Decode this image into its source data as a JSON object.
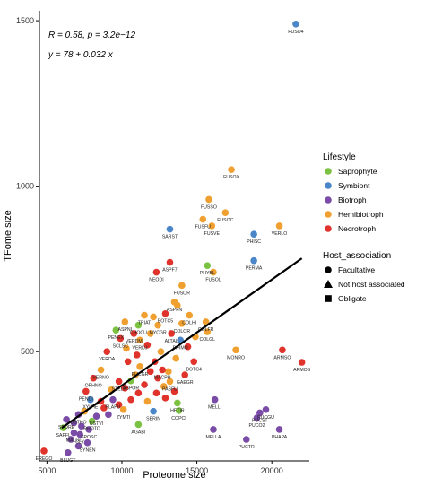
{
  "chart_data": {
    "type": "scatter",
    "title": "",
    "xlabel": "Proteome size",
    "ylabel": "TFome size",
    "xlim": [
      4500,
      22500
    ],
    "ylim": [
      170,
      1530
    ],
    "x_ticks": [
      5000,
      10000,
      15000,
      20000
    ],
    "y_ticks": [
      500,
      1000,
      1500
    ],
    "grid": false,
    "annotations": {
      "stats": "R = 0.58, p = 3.2e−12",
      "equation": "y = 78 + 0.032 x"
    },
    "regression": {
      "intercept": 78,
      "slope": 0.032,
      "x_range": [
        6000,
        22000
      ]
    },
    "legend": {
      "placement": "right",
      "lifestyle_title": "Lifestyle",
      "lifestyle": [
        {
          "key": "saprophyte",
          "name": "Saprophyte",
          "color": "#7CC242"
        },
        {
          "key": "symbiont",
          "name": "Symbiont",
          "color": "#4A86C8"
        },
        {
          "key": "biotroph",
          "name": "Biotroph",
          "color": "#7A4CA8"
        },
        {
          "key": "hemibiotroph",
          "name": "Hemibiotroph",
          "color": "#F0A030"
        },
        {
          "key": "necrotroph",
          "name": "Necrotroph",
          "color": "#E0332C"
        }
      ],
      "host_title": "Host_association",
      "host": [
        {
          "key": "facultative",
          "name": "Facultative",
          "shape": "circle"
        },
        {
          "key": "not_host",
          "name": "Not host associated",
          "shape": "triangle"
        },
        {
          "key": "obligate",
          "name": "Obligate",
          "shape": "square"
        }
      ]
    },
    "points": [
      {
        "label": "FUSO4",
        "x": 21600,
        "y": 1490,
        "lifestyle": "symbiont",
        "host": "facultative"
      },
      {
        "label": "FUSOX",
        "x": 17300,
        "y": 1050,
        "lifestyle": "hemibiotroph",
        "host": "facultative"
      },
      {
        "label": "FUSSO",
        "x": 15800,
        "y": 960,
        "lifestyle": "hemibiotroph",
        "host": "facultative"
      },
      {
        "label": "FUSOC",
        "x": 16900,
        "y": 920,
        "lifestyle": "hemibiotroph",
        "host": "facultative"
      },
      {
        "label": "FUSFU",
        "x": 15400,
        "y": 900,
        "lifestyle": "hemibiotroph",
        "host": "facultative"
      },
      {
        "label": "FUSVE",
        "x": 16000,
        "y": 880,
        "lifestyle": "hemibiotroph",
        "host": "facultative"
      },
      {
        "label": "SARST",
        "x": 13200,
        "y": 870,
        "lifestyle": "symbiont",
        "host": "facultative"
      },
      {
        "label": "VERLO",
        "x": 20500,
        "y": 880,
        "lifestyle": "hemibiotroph",
        "host": "facultative"
      },
      {
        "label": "PHISC",
        "x": 18800,
        "y": 855,
        "lifestyle": "symbiont",
        "host": "facultative"
      },
      {
        "label": "ASPF7",
        "x": 13200,
        "y": 770,
        "lifestyle": "necrotroph",
        "host": "facultative"
      },
      {
        "label": "PHYBL",
        "x": 15700,
        "y": 760,
        "lifestyle": "saprophyte",
        "host": "not_host"
      },
      {
        "label": "NEODI",
        "x": 12300,
        "y": 740,
        "lifestyle": "necrotroph",
        "host": "facultative"
      },
      {
        "label": "FUSOL",
        "x": 16100,
        "y": 740,
        "lifestyle": "hemibiotroph",
        "host": "facultative"
      },
      {
        "label": "PERMA",
        "x": 18800,
        "y": 775,
        "lifestyle": "symbiont",
        "host": "facultative"
      },
      {
        "label": "FUSOR",
        "x": 14000,
        "y": 700,
        "lifestyle": "hemibiotroph",
        "host": "facultative"
      },
      {
        "label": "ASPFN",
        "x": 13500,
        "y": 650,
        "lifestyle": "hemibiotroph",
        "host": "facultative"
      },
      {
        "label": "TRIAT",
        "x": 11500,
        "y": 610,
        "lifestyle": "hemibiotroph",
        "host": "facultative"
      },
      {
        "label": "BOTC5",
        "x": 12900,
        "y": 615,
        "lifestyle": "necrotroph",
        "host": "facultative"
      },
      {
        "label": "COLHI",
        "x": 14500,
        "y": 610,
        "lifestyle": "hemibiotroph",
        "host": "facultative"
      },
      {
        "label": "ASPNI",
        "x": 10200,
        "y": 590,
        "lifestyle": "hemibiotroph",
        "host": "facultative"
      },
      {
        "label": "CHOCU",
        "x": 11100,
        "y": 580,
        "lifestyle": "saprophyte",
        "host": "not_host"
      },
      {
        "label": "MYCGR",
        "x": 12400,
        "y": 580,
        "lifestyle": "hemibiotroph",
        "host": "facultative"
      },
      {
        "label": "COLOR",
        "x": 14000,
        "y": 585,
        "lifestyle": "hemibiotroph",
        "host": "facultative"
      },
      {
        "label": "COLFR",
        "x": 15600,
        "y": 590,
        "lifestyle": "hemibiotroph",
        "host": "facultative"
      },
      {
        "label": "PENEX",
        "x": 9600,
        "y": 565,
        "lifestyle": "saprophyte",
        "host": "not_host"
      },
      {
        "label": "VERDM",
        "x": 10800,
        "y": 555,
        "lifestyle": "necrotroph",
        "host": "facultative"
      },
      {
        "label": "ALTAL",
        "x": 13300,
        "y": 555,
        "lifestyle": "necrotroph",
        "host": "facultative"
      },
      {
        "label": "SCLSC",
        "x": 9900,
        "y": 540,
        "lifestyle": "necrotroph",
        "host": "facultative"
      },
      {
        "label": "VERDJ",
        "x": 11200,
        "y": 535,
        "lifestyle": "hemibiotroph",
        "host": "facultative"
      },
      {
        "label": "PIRMO",
        "x": 13900,
        "y": 535,
        "lifestyle": "symbiont",
        "host": "facultative"
      },
      {
        "label": "COLGL",
        "x": 15700,
        "y": 560,
        "lifestyle": "hemibiotroph",
        "host": "facultative"
      },
      {
        "label": "VERDA",
        "x": 9000,
        "y": 500,
        "lifestyle": "necrotroph",
        "host": "facultative"
      },
      {
        "label": "MONRO",
        "x": 17600,
        "y": 505,
        "lifestyle": "hemibiotroph",
        "host": "facultative"
      },
      {
        "label": "ARMSO",
        "x": 20700,
        "y": 505,
        "lifestyle": "necrotroph",
        "host": "facultative"
      },
      {
        "label": "ARMOS",
        "x": 22000,
        "y": 468,
        "lifestyle": "necrotroph",
        "host": "facultative"
      },
      {
        "label": "BOTC4",
        "x": 14800,
        "y": 470,
        "lifestyle": "necrotroph",
        "host": "facultative"
      },
      {
        "label": "VERNO",
        "x": 8600,
        "y": 445,
        "lifestyle": "hemibiotroph",
        "host": "facultative"
      },
      {
        "label": "PUCGR",
        "x": 11200,
        "y": 455,
        "lifestyle": "hemibiotroph",
        "host": "facultative"
      },
      {
        "label": "MACPH",
        "x": 12700,
        "y": 445,
        "lifestyle": "necrotroph",
        "host": "facultative"
      },
      {
        "label": "GAEGR",
        "x": 14200,
        "y": 430,
        "lifestyle": "necrotroph",
        "host": "facultative"
      },
      {
        "label": "OPHNO",
        "x": 8100,
        "y": 420,
        "lifestyle": "necrotroph",
        "host": "facultative"
      },
      {
        "label": "STELY",
        "x": 9800,
        "y": 410,
        "lifestyle": "necrotroph",
        "host": "facultative"
      },
      {
        "label": "ASPOR",
        "x": 10600,
        "y": 412,
        "lifestyle": "saprophyte",
        "host": "not_host"
      },
      {
        "label": "PASFU",
        "x": 13200,
        "y": 410,
        "lifestyle": "hemibiotroph",
        "host": "facultative"
      },
      {
        "label": "PENDI",
        "x": 7600,
        "y": 380,
        "lifestyle": "necrotroph",
        "host": "facultative"
      },
      {
        "label": "MELLI",
        "x": 16200,
        "y": 355,
        "lifestyle": "biotroph",
        "host": "obligate"
      },
      {
        "label": "XYLHE",
        "x": 7900,
        "y": 355,
        "lifestyle": "symbiont",
        "host": "facultative"
      },
      {
        "label": "PLAPU",
        "x": 9400,
        "y": 355,
        "lifestyle": "biotroph",
        "host": "facultative"
      },
      {
        "label": "HETIR",
        "x": 13700,
        "y": 345,
        "lifestyle": "saprophyte",
        "host": "not_host"
      },
      {
        "label": "ZYMTI",
        "x": 10100,
        "y": 325,
        "lifestyle": "hemibiotroph",
        "host": "facultative"
      },
      {
        "label": "SERIN",
        "x": 12100,
        "y": 320,
        "lifestyle": "symbiont",
        "host": "facultative"
      },
      {
        "label": "COPCI",
        "x": 13800,
        "y": 322,
        "lifestyle": "saprophyte",
        "host": "not_host"
      },
      {
        "label": "USTHO",
        "x": 7100,
        "y": 310,
        "lifestyle": "biotroph",
        "host": "facultative"
      },
      {
        "label": "USTVI",
        "x": 8300,
        "y": 305,
        "lifestyle": "biotroph",
        "host": "facultative"
      },
      {
        "label": "PUCST",
        "x": 19200,
        "y": 315,
        "lifestyle": "biotroph",
        "host": "obligate"
      },
      {
        "label": "PUCGU",
        "x": 19600,
        "y": 325,
        "lifestyle": "biotroph",
        "host": "obligate"
      },
      {
        "label": "PUCO2",
        "x": 19000,
        "y": 300,
        "lifestyle": "biotroph",
        "host": "obligate"
      },
      {
        "label": "SPORE",
        "x": 6300,
        "y": 295,
        "lifestyle": "biotroph",
        "host": "facultative"
      },
      {
        "label": "RHOTO",
        "x": 8000,
        "y": 290,
        "lifestyle": "saprophyte",
        "host": "not_host"
      },
      {
        "label": "SAPFL",
        "x": 6100,
        "y": 270,
        "lifestyle": "saprophyte",
        "host": "not_host"
      },
      {
        "label": "SPOSC",
        "x": 7800,
        "y": 265,
        "lifestyle": "biotroph",
        "host": "facultative"
      },
      {
        "label": "AGABI",
        "x": 11100,
        "y": 280,
        "lifestyle": "saprophyte",
        "host": "not_host"
      },
      {
        "label": "MELLA",
        "x": 16100,
        "y": 265,
        "lifestyle": "biotroph",
        "host": "obligate"
      },
      {
        "label": "PHAPA",
        "x": 20500,
        "y": 265,
        "lifestyle": "biotroph",
        "host": "obligate"
      },
      {
        "label": "MALGL",
        "x": 6800,
        "y": 255,
        "lifestyle": "biotroph",
        "host": "facultative"
      },
      {
        "label": "CLY",
        "x": 7200,
        "y": 250,
        "lifestyle": "biotroph",
        "host": "facultative"
      },
      {
        "label": "SYNEN",
        "x": 7700,
        "y": 225,
        "lifestyle": "biotroph",
        "host": "obligate"
      },
      {
        "label": "PUCTR",
        "x": 18300,
        "y": 235,
        "lifestyle": "biotroph",
        "host": "obligate"
      },
      {
        "label": "EREGO",
        "x": 4800,
        "y": 200,
        "lifestyle": "necrotroph",
        "host": "facultative"
      },
      {
        "label": "BLUGT",
        "x": 6400,
        "y": 195,
        "lifestyle": "biotroph",
        "host": "obligate"
      }
    ],
    "extra_points": [
      {
        "x": 11700,
        "y": 520,
        "lifestyle": "necrotroph"
      },
      {
        "x": 12600,
        "y": 500,
        "lifestyle": "hemibiotroph"
      },
      {
        "x": 11000,
        "y": 490,
        "lifestyle": "necrotroph"
      },
      {
        "x": 12200,
        "y": 470,
        "lifestyle": "necrotroph"
      },
      {
        "x": 13600,
        "y": 480,
        "lifestyle": "hemibiotroph"
      },
      {
        "x": 10400,
        "y": 470,
        "lifestyle": "necrotroph"
      },
      {
        "x": 11900,
        "y": 440,
        "lifestyle": "necrotroph"
      },
      {
        "x": 13100,
        "y": 440,
        "lifestyle": "hemibiotroph"
      },
      {
        "x": 10900,
        "y": 430,
        "lifestyle": "hemibiotroph"
      },
      {
        "x": 12400,
        "y": 420,
        "lifestyle": "necrotroph"
      },
      {
        "x": 11500,
        "y": 400,
        "lifestyle": "necrotroph"
      },
      {
        "x": 12800,
        "y": 395,
        "lifestyle": "hemibiotroph"
      },
      {
        "x": 10200,
        "y": 390,
        "lifestyle": "necrotroph"
      },
      {
        "x": 11100,
        "y": 375,
        "lifestyle": "necrotroph"
      },
      {
        "x": 12300,
        "y": 375,
        "lifestyle": "necrotroph"
      },
      {
        "x": 13500,
        "y": 380,
        "lifestyle": "necrotroph"
      },
      {
        "x": 9300,
        "y": 385,
        "lifestyle": "hemibiotroph"
      },
      {
        "x": 10600,
        "y": 355,
        "lifestyle": "necrotroph"
      },
      {
        "x": 11700,
        "y": 350,
        "lifestyle": "hemibiotroph"
      },
      {
        "x": 12900,
        "y": 360,
        "lifestyle": "necrotroph"
      },
      {
        "x": 9800,
        "y": 340,
        "lifestyle": "necrotroph"
      },
      {
        "x": 8800,
        "y": 330,
        "lifestyle": "necrotroph"
      },
      {
        "x": 9100,
        "y": 310,
        "lifestyle": "biotroph"
      },
      {
        "x": 7500,
        "y": 320,
        "lifestyle": "hemibiotroph"
      },
      {
        "x": 8600,
        "y": 350,
        "lifestyle": "necrotroph"
      },
      {
        "x": 6800,
        "y": 285,
        "lifestyle": "biotroph"
      },
      {
        "x": 7300,
        "y": 275,
        "lifestyle": "biotroph"
      },
      {
        "x": 6600,
        "y": 235,
        "lifestyle": "biotroph"
      },
      {
        "x": 7100,
        "y": 215,
        "lifestyle": "biotroph"
      },
      {
        "x": 14400,
        "y": 515,
        "lifestyle": "necrotroph"
      },
      {
        "x": 14900,
        "y": 545,
        "lifestyle": "hemibiotroph"
      },
      {
        "x": 12100,
        "y": 605,
        "lifestyle": "hemibiotroph"
      },
      {
        "x": 13700,
        "y": 640,
        "lifestyle": "hemibiotroph"
      },
      {
        "x": 11900,
        "y": 555,
        "lifestyle": "hemibiotroph"
      },
      {
        "x": 10300,
        "y": 510,
        "lifestyle": "hemibiotroph"
      }
    ]
  }
}
